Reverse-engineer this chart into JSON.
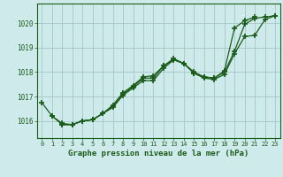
{
  "xlabel": "Graphe pression niveau de la mer (hPa)",
  "xlim": [
    -0.5,
    23.5
  ],
  "ylim": [
    1015.3,
    1020.8
  ],
  "yticks": [
    1016,
    1017,
    1018,
    1019,
    1020
  ],
  "xticks": [
    0,
    1,
    2,
    3,
    4,
    5,
    6,
    7,
    8,
    9,
    10,
    11,
    12,
    13,
    14,
    15,
    16,
    17,
    18,
    19,
    20,
    21,
    22,
    23
  ],
  "background_color": "#ceeaea",
  "grid_color": "#aacccc",
  "line_color": "#1a5c1a",
  "line1_x": [
    0,
    1,
    2,
    3,
    4,
    5,
    6,
    7,
    8,
    9,
    10,
    11,
    12,
    13,
    14,
    15,
    16,
    17,
    18,
    19,
    20,
    21
  ],
  "line1_y": [
    1016.75,
    1016.2,
    1015.85,
    1015.85,
    1016.0,
    1016.05,
    1016.3,
    1016.55,
    1017.05,
    1017.35,
    1017.65,
    1017.65,
    1018.15,
    1018.5,
    1018.35,
    1017.95,
    1017.8,
    1017.75,
    1018.05,
    1019.8,
    1020.1,
    1020.25
  ],
  "line2_x": [
    2,
    3,
    4,
    5,
    6,
    7,
    8,
    9,
    10,
    11,
    12,
    13,
    14,
    15,
    16,
    17,
    18,
    19,
    20,
    21,
    22,
    23
  ],
  "line2_y": [
    1015.85,
    1015.85,
    1016.0,
    1016.05,
    1016.3,
    1016.65,
    1017.15,
    1017.45,
    1017.8,
    1017.85,
    1018.25,
    1018.55,
    1018.35,
    1017.95,
    1017.75,
    1017.7,
    1017.9,
    1018.75,
    1019.45,
    1019.5,
    1020.15,
    1020.3
  ],
  "line3_x": [
    1,
    2,
    3,
    4,
    5,
    6,
    7,
    8,
    9,
    10,
    11,
    12,
    13,
    14,
    15,
    16,
    17,
    18,
    19,
    20,
    21,
    22,
    23
  ],
  "line3_y": [
    1016.2,
    1015.9,
    1015.85,
    1016.0,
    1016.05,
    1016.3,
    1016.6,
    1017.1,
    1017.4,
    1017.75,
    1017.75,
    1018.25,
    1018.5,
    1018.35,
    1018.0,
    1017.8,
    1017.75,
    1018.0,
    1018.85,
    1019.95,
    1020.2,
    1020.25,
    1020.3
  ]
}
